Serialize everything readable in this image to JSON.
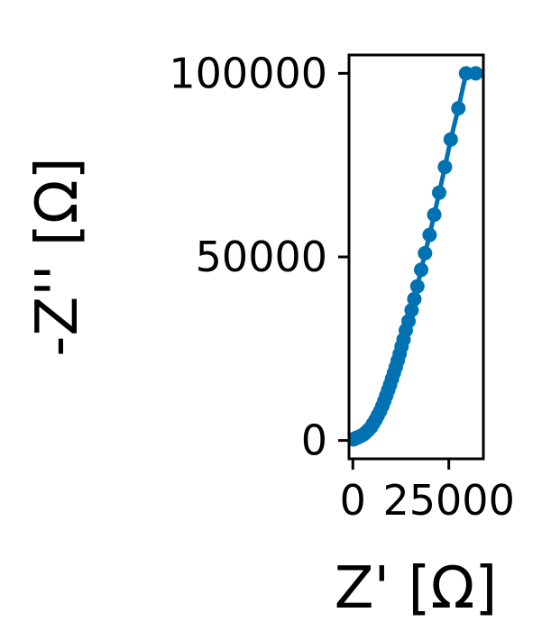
{
  "chart_data": {
    "type": "line",
    "xlabel": "Z' [Ω]",
    "ylabel": "-Z'' [Ω]",
    "xlim": [
      -1000,
      34000
    ],
    "ylim": [
      -5000,
      105000
    ],
    "xticks": [
      0,
      25000
    ],
    "xtick_labels": [
      "0",
      "25000"
    ],
    "yticks": [
      0,
      50000,
      100000
    ],
    "ytick_labels": [
      "0",
      "50000",
      "100000"
    ],
    "grid": false,
    "legend": "none",
    "series": [
      {
        "color": "#0072b2",
        "marker": "circle",
        "x": [
          200,
          500,
          900,
          1400,
          2000,
          2700,
          3300,
          4000,
          4700,
          5300,
          5900,
          6500,
          7100,
          7700,
          8200,
          8700,
          9200,
          9700,
          10200,
          10700,
          11200,
          11700,
          12200,
          12700,
          13200,
          13800,
          14500,
          15300,
          16000,
          16800,
          17800,
          18800,
          20000,
          21200,
          22500,
          24000,
          25500,
          27500,
          29500,
          32000
        ],
        "y": [
          300,
          500,
          700,
          900,
          1200,
          1600,
          2100,
          2800,
          3600,
          4600,
          5600,
          6800,
          8000,
          9400,
          10800,
          12200,
          13700,
          15200,
          16800,
          18400,
          20000,
          21800,
          23600,
          25600,
          27500,
          30000,
          32500,
          35500,
          38500,
          42000,
          46500,
          51000,
          56000,
          61500,
          67500,
          74500,
          82000,
          90500,
          100000,
          100000
        ]
      }
    ]
  }
}
